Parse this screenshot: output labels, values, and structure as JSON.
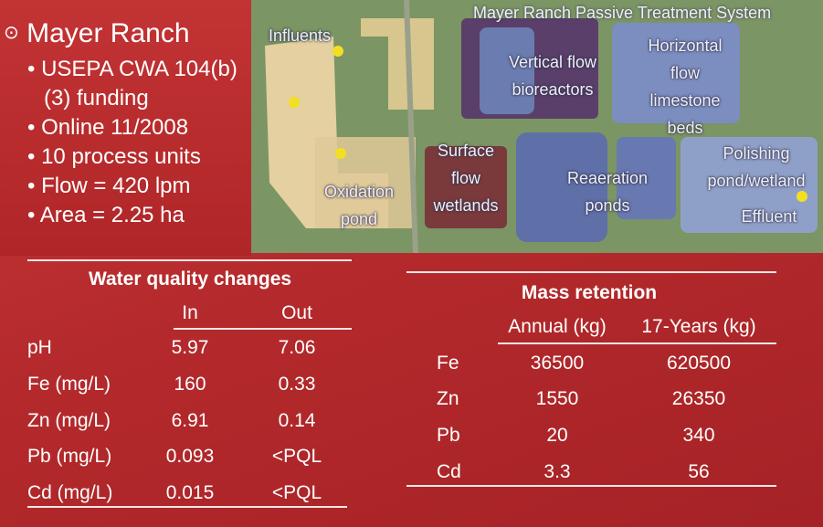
{
  "bullets": {
    "heading": "Mayer Ranch",
    "items": [
      "USEPA CWA 104(b)(3) funding",
      "Online 11/2008",
      "10 process units",
      "Flow = 420 lpm",
      "Area = 2.25 ha"
    ]
  },
  "map": {
    "title": "Mayer Ranch Passive Treatment System",
    "labels": [
      "Influents",
      "Oxidation pond",
      "Vertical flow bioreactors",
      "Horizontal flow limestone beds",
      "Surface flow wetlands",
      "Reaeration ponds",
      "Polishing pond/wetland",
      "Effluent"
    ]
  },
  "water_quality": {
    "title": "Water quality changes",
    "columns": [
      "In",
      "Out"
    ],
    "rows": [
      [
        "pH",
        "5.97",
        "7.06"
      ],
      [
        "Fe (mg/L)",
        "160",
        "0.33"
      ],
      [
        "Zn (mg/L)",
        "6.91",
        "0.14"
      ],
      [
        "Pb (mg/L)",
        "0.093",
        "<PQL"
      ],
      [
        "Cd (mg/L)",
        "0.015",
        "<PQL"
      ]
    ]
  },
  "mass_retention": {
    "title": "Mass retention",
    "columns": [
      "Annual (kg)",
      "17-Years (kg)"
    ],
    "rows": [
      [
        "Fe",
        "36500",
        "620500"
      ],
      [
        "Zn",
        "1550",
        "26350"
      ],
      [
        "Pb",
        "20",
        "340"
      ],
      [
        "Cd",
        "3.3",
        "56"
      ]
    ]
  }
}
